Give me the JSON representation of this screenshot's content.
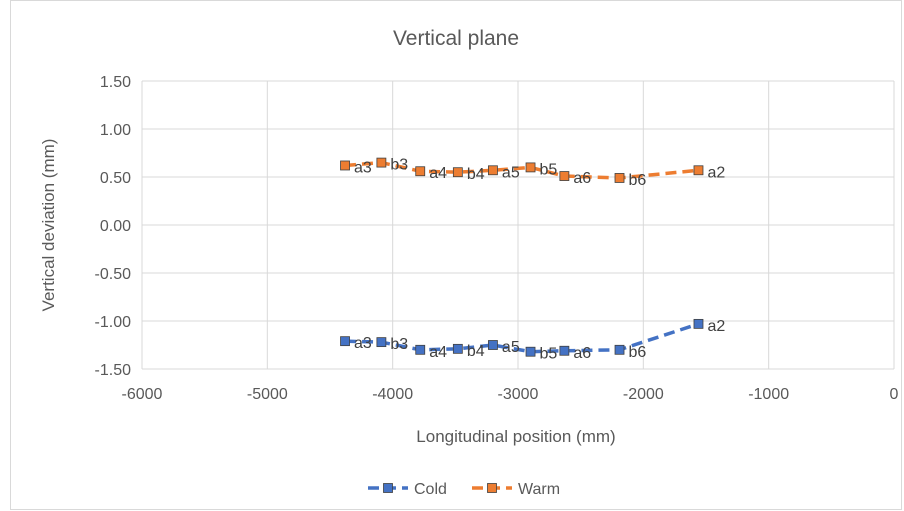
{
  "chart_data": {
    "type": "scatter",
    "title": "Vertical plane",
    "xlabel": "Longitudinal position (mm)",
    "ylabel": "Vertical deviation (mm)",
    "xlim": [
      -6000,
      0
    ],
    "ylim": [
      -1.5,
      1.5
    ],
    "xticks": [
      "-6000",
      "-5000",
      "-4000",
      "-3000",
      "-2000",
      "-1000",
      "0"
    ],
    "xtick_values": [
      -6000,
      -5000,
      -4000,
      -3000,
      -2000,
      -1000,
      0
    ],
    "yticks": [
      "1.50",
      "1.00",
      "0.50",
      "0.00",
      "-0.50",
      "-1.00",
      "-1.50"
    ],
    "ytick_values": [
      1.5,
      1.0,
      0.5,
      0.0,
      -0.5,
      -1.0,
      -1.5
    ],
    "grid": true,
    "legend_position": "bottom",
    "series": [
      {
        "name": "Cold",
        "color": "#4472c4",
        "line_style": "dashed",
        "marker": "square",
        "points": [
          {
            "x": -4380,
            "y": -1.21,
            "label": "a3"
          },
          {
            "x": -4090,
            "y": -1.22,
            "label": "b3"
          },
          {
            "x": -3780,
            "y": -1.3,
            "label": "a4"
          },
          {
            "x": -3480,
            "y": -1.29,
            "label": "b4"
          },
          {
            "x": -3200,
            "y": -1.25,
            "label": "a5"
          },
          {
            "x": -2900,
            "y": -1.32,
            "label": "b5"
          },
          {
            "x": -2630,
            "y": -1.31,
            "label": "a6"
          },
          {
            "x": -2190,
            "y": -1.3,
            "label": "b6"
          },
          {
            "x": -1560,
            "y": -1.03,
            "label": "a2"
          }
        ]
      },
      {
        "name": "Warm",
        "color": "#ed7d31",
        "line_style": "dashed",
        "marker": "square",
        "points": [
          {
            "x": -4380,
            "y": 0.62,
            "label": "a3"
          },
          {
            "x": -4090,
            "y": 0.65,
            "label": "b3"
          },
          {
            "x": -3780,
            "y": 0.56,
            "label": "a4"
          },
          {
            "x": -3480,
            "y": 0.55,
            "label": "b4"
          },
          {
            "x": -3200,
            "y": 0.57,
            "label": "a5"
          },
          {
            "x": -2900,
            "y": 0.6,
            "label": "b5"
          },
          {
            "x": -2630,
            "y": 0.51,
            "label": "a6"
          },
          {
            "x": -2190,
            "y": 0.49,
            "label": "b6"
          },
          {
            "x": -1560,
            "y": 0.57,
            "label": "a2"
          }
        ]
      }
    ]
  }
}
